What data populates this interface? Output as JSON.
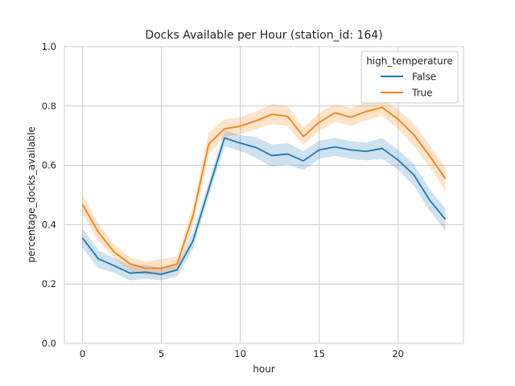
{
  "chart_data": {
    "type": "line",
    "title": "Docks Available per Hour (station_id: 164)",
    "xlabel": "hour",
    "ylabel": "percentage_docks_available",
    "xlim": [
      -1.15,
      24.15
    ],
    "ylim": [
      0.0,
      1.0
    ],
    "x_ticks": [
      "0",
      "5",
      "10",
      "15",
      "20"
    ],
    "y_ticks": [
      "0.0",
      "0.2",
      "0.4",
      "0.6",
      "0.8",
      "1.0"
    ],
    "grid": true,
    "legend": {
      "title": "high_temperature",
      "placement": "top-right"
    },
    "x": [
      0,
      1,
      2,
      3,
      4,
      5,
      6,
      7,
      8,
      9,
      10,
      11,
      12,
      13,
      14,
      15,
      16,
      17,
      18,
      19,
      20,
      21,
      22,
      23
    ],
    "series": [
      {
        "name": "False",
        "color": "#1f77b4",
        "values": [
          0.355,
          0.285,
          0.262,
          0.237,
          0.24,
          0.233,
          0.248,
          0.345,
          0.52,
          0.692,
          0.675,
          0.66,
          0.633,
          0.638,
          0.615,
          0.652,
          0.662,
          0.652,
          0.647,
          0.657,
          0.618,
          0.568,
          0.483,
          0.418
        ],
        "ci_low": [
          0.323,
          0.253,
          0.238,
          0.212,
          0.218,
          0.212,
          0.226,
          0.318,
          0.495,
          0.665,
          0.648,
          0.625,
          0.595,
          0.603,
          0.584,
          0.622,
          0.632,
          0.622,
          0.617,
          0.622,
          0.585,
          0.532,
          0.447,
          0.38
        ],
        "ci_high": [
          0.387,
          0.315,
          0.287,
          0.262,
          0.265,
          0.255,
          0.27,
          0.374,
          0.544,
          0.718,
          0.702,
          0.695,
          0.67,
          0.675,
          0.648,
          0.683,
          0.692,
          0.682,
          0.677,
          0.692,
          0.652,
          0.605,
          0.52,
          0.455
        ]
      },
      {
        "name": "True",
        "color": "#ff7f0e",
        "values": [
          0.468,
          0.375,
          0.308,
          0.268,
          0.253,
          0.253,
          0.268,
          0.43,
          0.672,
          0.723,
          0.732,
          0.75,
          0.772,
          0.765,
          0.697,
          0.745,
          0.777,
          0.762,
          0.782,
          0.795,
          0.755,
          0.703,
          0.632,
          0.555
        ],
        "ci_low": [
          0.435,
          0.345,
          0.285,
          0.245,
          0.23,
          0.228,
          0.243,
          0.396,
          0.638,
          0.695,
          0.705,
          0.722,
          0.74,
          0.732,
          0.668,
          0.715,
          0.747,
          0.732,
          0.752,
          0.768,
          0.722,
          0.665,
          0.595,
          0.515
        ],
        "ci_high": [
          0.5,
          0.405,
          0.334,
          0.29,
          0.275,
          0.285,
          0.292,
          0.462,
          0.71,
          0.755,
          0.762,
          0.782,
          0.807,
          0.8,
          0.727,
          0.777,
          0.807,
          0.792,
          0.814,
          0.824,
          0.788,
          0.742,
          0.668,
          0.592
        ]
      }
    ]
  }
}
